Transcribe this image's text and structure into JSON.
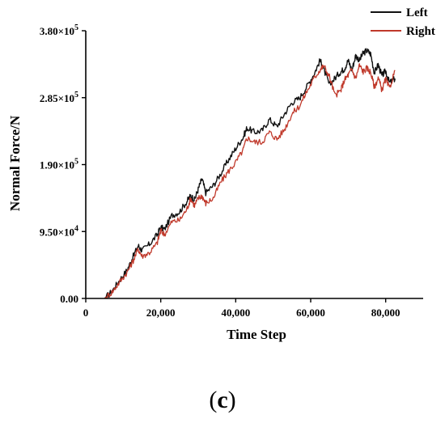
{
  "chart_data": {
    "type": "line",
    "title": "",
    "xlabel": "Time Step",
    "ylabel": "Normal Force/N",
    "xlim": [
      0,
      90000
    ],
    "ylim": [
      0,
      380000
    ],
    "x_ticks": [
      0,
      20000,
      40000,
      60000,
      80000
    ],
    "x_tick_labels": [
      "0",
      "20,000",
      "40,000",
      "60,000",
      "80,000"
    ],
    "y_ticks": [
      0,
      95000,
      190000,
      285000,
      380000
    ],
    "y_tick_labels": [
      {
        "mantissa": "0.00",
        "exp": ""
      },
      {
        "mantissa": "9.50×10",
        "exp": "4"
      },
      {
        "mantissa": "1.90×10",
        "exp": "5"
      },
      {
        "mantissa": "2.85×10",
        "exp": "5"
      },
      {
        "mantissa": "3.80×10",
        "exp": "5"
      }
    ],
    "grid": false,
    "legend_position": "top-right",
    "series": [
      {
        "name": "Left",
        "color": "#111111",
        "x": [
          5000,
          7000,
          9000,
          11000,
          12500,
          14000,
          15000,
          17000,
          19000,
          20000,
          21000,
          23000,
          25000,
          27000,
          28000,
          29000,
          30000,
          31000,
          32000,
          34000,
          36000,
          38000,
          40000,
          42000,
          43000,
          45000,
          47000,
          49000,
          51000,
          53000,
          55000,
          57000,
          59000,
          61000,
          62500,
          63500,
          65000,
          66500,
          68000,
          69000,
          70000,
          71000,
          72000,
          73000,
          74000,
          75000,
          76000,
          77000,
          78000,
          79000,
          80000,
          81000,
          82500
        ],
        "y": [
          0,
          10000,
          26000,
          40000,
          58000,
          75000,
          68000,
          77000,
          90000,
          101000,
          98000,
          118000,
          123000,
          138000,
          146000,
          140000,
          155000,
          170000,
          150000,
          160000,
          177000,
          196000,
          213000,
          229000,
          242000,
          236000,
          238000,
          254000,
          244000,
          262000,
          278000,
          284000,
          301000,
          320000,
          338000,
          325000,
          303000,
          313000,
          322000,
          326000,
          338000,
          324000,
          345000,
          338000,
          348000,
          352000,
          347000,
          320000,
          332000,
          316000,
          323000,
          306000,
          312000
        ]
      },
      {
        "name": "Right",
        "color": "#c0392b",
        "x": [
          5000,
          7000,
          9000,
          11000,
          12500,
          14000,
          15000,
          17000,
          19000,
          20000,
          21000,
          23000,
          25000,
          27000,
          28000,
          29000,
          30000,
          31000,
          32000,
          34000,
          36000,
          38000,
          40000,
          42000,
          43000,
          45000,
          47000,
          49000,
          51000,
          53000,
          55000,
          57000,
          59000,
          61000,
          62500,
          63500,
          65000,
          66500,
          68000,
          69000,
          70000,
          71000,
          72000,
          73000,
          74000,
          75000,
          76000,
          77000,
          78000,
          79000,
          80000,
          81000,
          82500
        ],
        "y": [
          0,
          9000,
          23000,
          37000,
          52000,
          70000,
          60000,
          65000,
          78000,
          96000,
          91000,
          109000,
          111000,
          127000,
          142000,
          132000,
          142000,
          146000,
          135000,
          142000,
          165000,
          180000,
          193000,
          211000,
          228000,
          222000,
          222000,
          236000,
          226000,
          240000,
          262000,
          273000,
          294000,
          313000,
          325000,
          330000,
          315000,
          288000,
          295000,
          310000,
          317000,
          325000,
          312000,
          331000,
          322000,
          327000,
          321000,
          300000,
          313000,
          296000,
          311000,
          298000,
          324000
        ]
      }
    ],
    "panel_label": "c"
  }
}
